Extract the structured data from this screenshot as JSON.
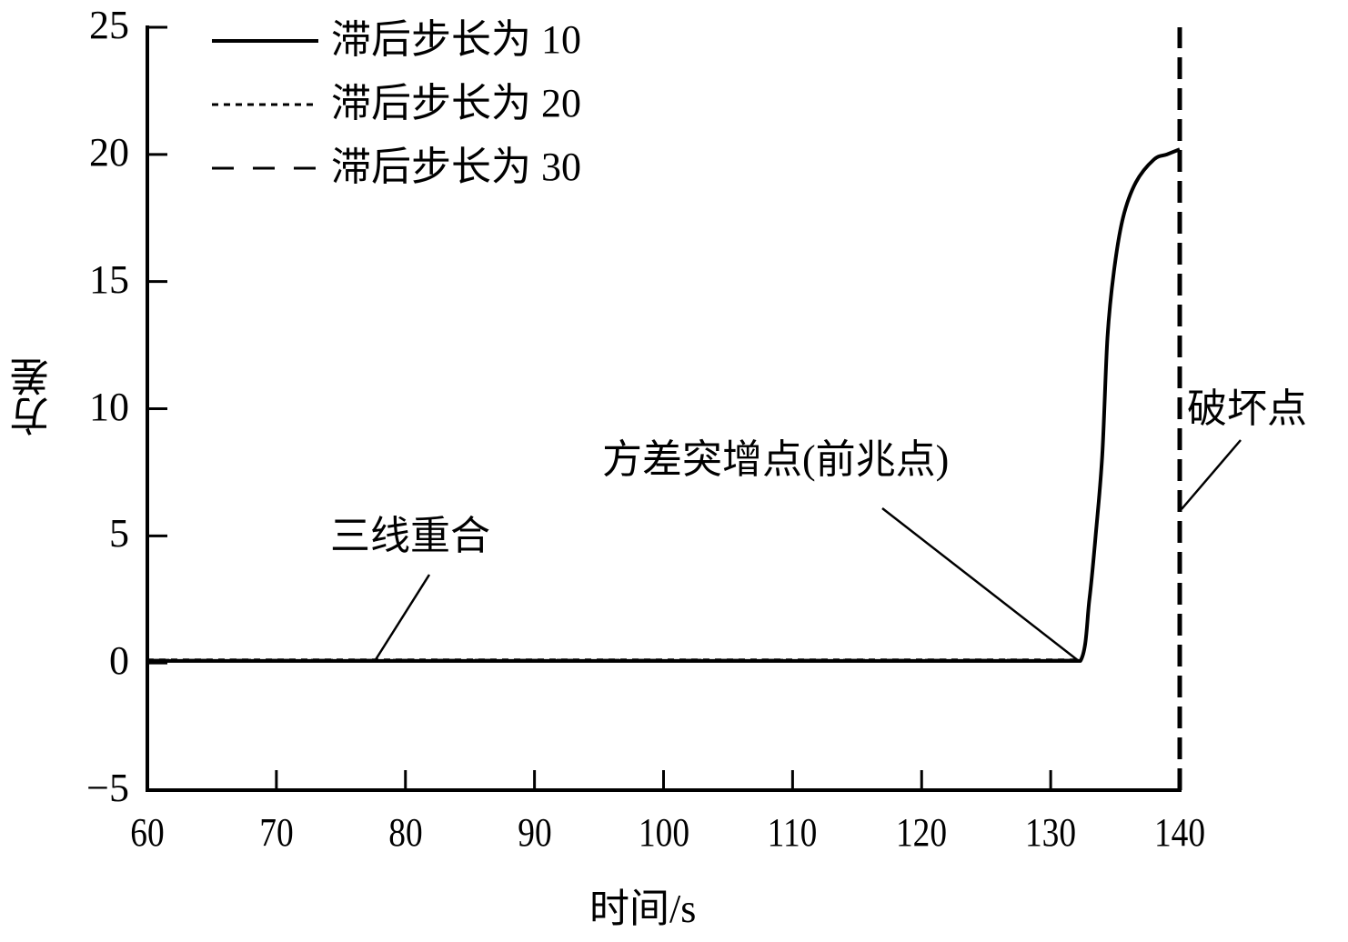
{
  "chart_data": {
    "type": "line",
    "title": "",
    "xlabel": "时间/s",
    "ylabel": "方差",
    "xlim": [
      60,
      140
    ],
    "ylim": [
      -5,
      25
    ],
    "xticks": [
      60,
      70,
      80,
      90,
      100,
      110,
      120,
      130,
      140
    ],
    "yticks": [
      -5,
      0,
      5,
      10,
      15,
      20,
      25
    ],
    "xtick_labels": [
      "60",
      "70",
      "80",
      "90",
      "100",
      "110",
      "120",
      "130",
      "140"
    ],
    "ytick_labels": [
      "−5",
      "0",
      "5",
      "10",
      "15",
      "20",
      "25"
    ],
    "grid": false,
    "legend_position": "upper left",
    "series": [
      {
        "name": "滞后步长为 10",
        "style": "solid",
        "x": [
          60,
          70,
          80,
          90,
          100,
          110,
          120,
          130,
          132.3,
          133.0,
          133.5,
          134.0,
          134.4,
          134.9,
          135.6,
          136.6,
          138.0,
          139.0,
          140.0
        ],
        "y": [
          0.08,
          0.08,
          0.08,
          0.08,
          0.08,
          0.08,
          0.08,
          0.08,
          0.08,
          2.5,
          5.1,
          8.2,
          12.8,
          15.4,
          17.5,
          18.9,
          19.8,
          20.0,
          20.2
        ]
      },
      {
        "name": "滞后步长为 20",
        "style": "dotted",
        "x": [
          60,
          70,
          80,
          90,
          100,
          110,
          120,
          130,
          132.3
        ],
        "y": [
          0.12,
          0.12,
          0.12,
          0.12,
          0.12,
          0.12,
          0.12,
          0.12,
          0.12
        ]
      },
      {
        "name": "滞后步长为 30",
        "style": "dashed",
        "x": [
          60,
          70,
          80,
          90,
          100,
          110,
          120,
          130,
          132.3,
          140,
          140
        ],
        "y": [
          0.1,
          0.1,
          0.1,
          0.1,
          0.1,
          0.1,
          0.1,
          0.1,
          0.1,
          -5,
          25
        ],
        "note": "vertical dashed line at x=140 spanning full y range"
      }
    ],
    "annotations": [
      {
        "text": "三线重合",
        "text_xy": [
          78.5,
          4.5
        ],
        "arrow_to": [
          77.5,
          0.1
        ]
      },
      {
        "text": "方差突增点(前兆点)",
        "text_xy": [
          92,
          7.5
        ],
        "arrow_to": [
          132.3,
          0.08
        ]
      },
      {
        "text": "破坏点",
        "text_xy": [
          140.5,
          10
        ],
        "arrow_to": [
          140,
          6
        ]
      }
    ]
  },
  "legend": {
    "items": [
      {
        "label": "滞后步长为 10",
        "style": "solid"
      },
      {
        "label": "滞后步长为 20",
        "style": "dotted"
      },
      {
        "label": "滞后步长为 30",
        "style": "dashed"
      }
    ]
  },
  "axes": {
    "xlabel": "时间/s",
    "ylabel": "方差"
  },
  "annotations": {
    "overlap": "三线重合",
    "precursor": "方差突增点(前兆点)",
    "failure": "破坏点"
  },
  "colors": {
    "line": "#000000",
    "background": "#ffffff"
  }
}
